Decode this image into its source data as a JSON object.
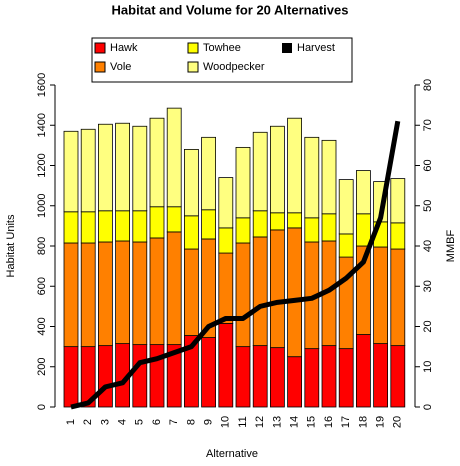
{
  "chart_data": {
    "type": "bar",
    "stacked": true,
    "title": "Habitat and Volume for 20 Alternatives",
    "x_label": "Alternative",
    "y_label": "Habitat Units",
    "y2_label": "MMBF",
    "categories": [
      "1",
      "2",
      "3",
      "4",
      "5",
      "6",
      "7",
      "8",
      "9",
      "10",
      "11",
      "12",
      "13",
      "14",
      "15",
      "16",
      "17",
      "18",
      "19",
      "20"
    ],
    "series": [
      {
        "name": "Hawk",
        "color": "#ff0000",
        "values": [
          300,
          300,
          305,
          315,
          310,
          310,
          310,
          355,
          345,
          415,
          300,
          305,
          295,
          250,
          290,
          305,
          290,
          360,
          315,
          305
        ]
      },
      {
        "name": "Vole",
        "color": "#ff8000",
        "values": [
          515,
          515,
          515,
          510,
          510,
          530,
          560,
          430,
          490,
          350,
          515,
          540,
          585,
          640,
          530,
          520,
          455,
          440,
          480,
          480
        ]
      },
      {
        "name": "Towhee",
        "color": "#ffff00",
        "values": [
          155,
          155,
          155,
          150,
          155,
          155,
          125,
          165,
          145,
          125,
          125,
          130,
          85,
          75,
          120,
          135,
          115,
          160,
          125,
          130
        ]
      },
      {
        "name": "Woodpecker",
        "color": "#ffff80",
        "values": [
          400,
          410,
          430,
          435,
          420,
          440,
          490,
          330,
          360,
          250,
          350,
          390,
          430,
          470,
          400,
          365,
          270,
          215,
          200,
          220
        ]
      },
      {
        "name": "Harvest",
        "color": "#000000",
        "type": "line",
        "axis": "y2",
        "values": [
          0,
          1,
          5,
          6,
          11,
          12,
          13.5,
          15,
          20,
          22,
          22,
          25,
          26,
          26.5,
          27,
          29,
          32,
          36,
          47,
          71
        ]
      }
    ],
    "ylim": [
      0,
      1600
    ],
    "yticks": [
      0,
      200,
      400,
      600,
      800,
      1000,
      1200,
      1400,
      1600
    ],
    "y2lim": [
      0,
      80
    ],
    "y2ticks": [
      0,
      10,
      20,
      30,
      40,
      50,
      60,
      70,
      80
    ]
  }
}
